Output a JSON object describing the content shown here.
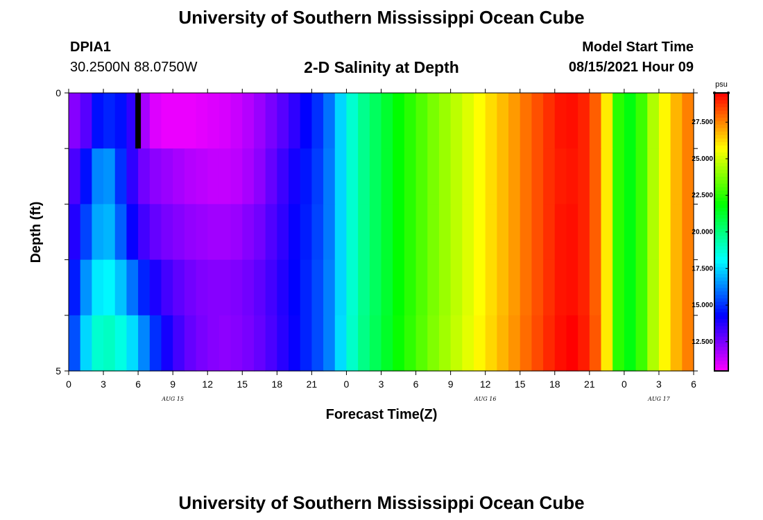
{
  "header": {
    "title_top": "University of Southern Mississippi Ocean Cube",
    "title_bottom": "University of Southern Mississippi Ocean Cube",
    "station_id": "DPIA1",
    "station_coords": "30.2500N  88.0750W",
    "model_start_label": "Model Start Time",
    "model_start_value": "08/15/2021 Hour 09"
  },
  "chart_data": {
    "type": "heatmap",
    "title": "2-D Salinity at Depth",
    "xlabel": "Forecast Time(Z)",
    "ylabel": "Depth (ft)",
    "x_ticks": [
      "0",
      "3",
      "6",
      "9",
      "12",
      "15",
      "18",
      "21",
      "0",
      "3",
      "6",
      "9",
      "12",
      "15",
      "18",
      "21",
      "0",
      "3",
      "6"
    ],
    "x_range_hours": [
      0,
      54
    ],
    "date_labels": [
      {
        "text": "AUG 15",
        "hour": 9
      },
      {
        "text": "AUG 16",
        "hour": 36
      },
      {
        "text": "AUG 17",
        "hour": 51
      }
    ],
    "y_ticks": [
      "0",
      "",
      "",
      "",
      "",
      "5"
    ],
    "y_range": [
      0,
      5
    ],
    "depth_layers": 5,
    "columns_per_layer": 54,
    "colorbar": {
      "unit": "psu",
      "min": 10.5,
      "max": 29.5,
      "ticks": [
        "27.500",
        "25.000",
        "22.500",
        "20.000",
        "17.500",
        "15.000",
        "12.500"
      ],
      "tick_values": [
        27.5,
        25.0,
        22.5,
        20.0,
        17.5,
        15.0,
        12.5
      ]
    },
    "missing_mark": {
      "hour": 6,
      "layer": 0
    },
    "salinity": [
      [
        12.3,
        13.0,
        14.5,
        14.8,
        14.5,
        13.6,
        11.8,
        11.0,
        10.8,
        10.8,
        10.8,
        10.9,
        11.0,
        11.1,
        11.3,
        11.6,
        12.0,
        12.5,
        13.0,
        13.6,
        14.3,
        15.0,
        16.0,
        17.5,
        18.8,
        19.8,
        20.5,
        21.2,
        21.9,
        22.5,
        23.1,
        23.7,
        24.2,
        24.7,
        25.2,
        25.7,
        26.2,
        26.7,
        27.2,
        27.8,
        28.3,
        28.8,
        29.2,
        29.3,
        29.0,
        28.1,
        26.0,
        22.5,
        21.7,
        22.8,
        24.5,
        25.8,
        26.8,
        27.6
      ],
      [
        13.2,
        14.5,
        16.3,
        16.5,
        15.0,
        13.6,
        12.6,
        12.2,
        12.0,
        11.8,
        11.6,
        11.5,
        11.4,
        11.4,
        11.5,
        11.8,
        12.2,
        12.8,
        13.4,
        14.0,
        14.6,
        15.2,
        16.1,
        17.5,
        18.8,
        19.8,
        20.5,
        21.2,
        21.9,
        22.5,
        23.1,
        23.7,
        24.2,
        24.7,
        25.2,
        25.7,
        26.2,
        26.7,
        27.2,
        27.8,
        28.3,
        28.8,
        29.1,
        29.2,
        29.0,
        28.1,
        26.0,
        22.5,
        21.7,
        22.8,
        24.5,
        25.8,
        26.8,
        27.6
      ],
      [
        13.8,
        15.3,
        16.8,
        17.0,
        15.7,
        14.2,
        13.3,
        12.8,
        12.5,
        12.3,
        12.1,
        12.0,
        11.9,
        11.9,
        12.0,
        12.3,
        12.6,
        13.1,
        13.6,
        14.2,
        14.7,
        15.3,
        16.1,
        17.5,
        18.8,
        19.8,
        20.5,
        21.2,
        21.9,
        22.5,
        23.1,
        23.7,
        24.2,
        24.7,
        25.2,
        25.7,
        26.2,
        26.7,
        27.2,
        27.8,
        28.3,
        28.8,
        29.2,
        29.3,
        29.0,
        28.1,
        26.0,
        22.5,
        21.7,
        22.8,
        24.5,
        25.8,
        26.8,
        27.6
      ],
      [
        14.7,
        16.5,
        17.8,
        18.0,
        17.2,
        16.0,
        14.8,
        13.9,
        13.3,
        12.9,
        12.6,
        12.4,
        12.3,
        12.3,
        12.4,
        12.6,
        12.9,
        13.3,
        13.8,
        14.3,
        14.8,
        15.4,
        16.2,
        17.5,
        18.8,
        19.8,
        20.5,
        21.2,
        21.9,
        22.5,
        23.1,
        23.7,
        24.2,
        24.7,
        25.2,
        25.7,
        26.2,
        26.7,
        27.2,
        27.8,
        28.3,
        28.8,
        29.2,
        29.3,
        29.0,
        28.1,
        26.0,
        22.5,
        21.7,
        22.8,
        24.5,
        25.8,
        26.8,
        27.6
      ],
      [
        15.5,
        17.5,
        18.8,
        19.0,
        18.5,
        17.6,
        16.3,
        15.0,
        14.0,
        13.3,
        12.8,
        12.5,
        12.3,
        12.2,
        12.3,
        12.5,
        12.8,
        13.2,
        13.7,
        14.2,
        14.8,
        15.4,
        16.2,
        17.6,
        18.9,
        19.9,
        20.6,
        21.3,
        22.0,
        22.6,
        23.2,
        23.8,
        24.3,
        24.8,
        25.3,
        25.8,
        26.3,
        26.8,
        27.3,
        27.9,
        28.4,
        28.9,
        29.3,
        29.5,
        29.1,
        28.2,
        26.0,
        22.5,
        21.7,
        22.8,
        24.5,
        25.8,
        26.8,
        27.6
      ]
    ]
  }
}
